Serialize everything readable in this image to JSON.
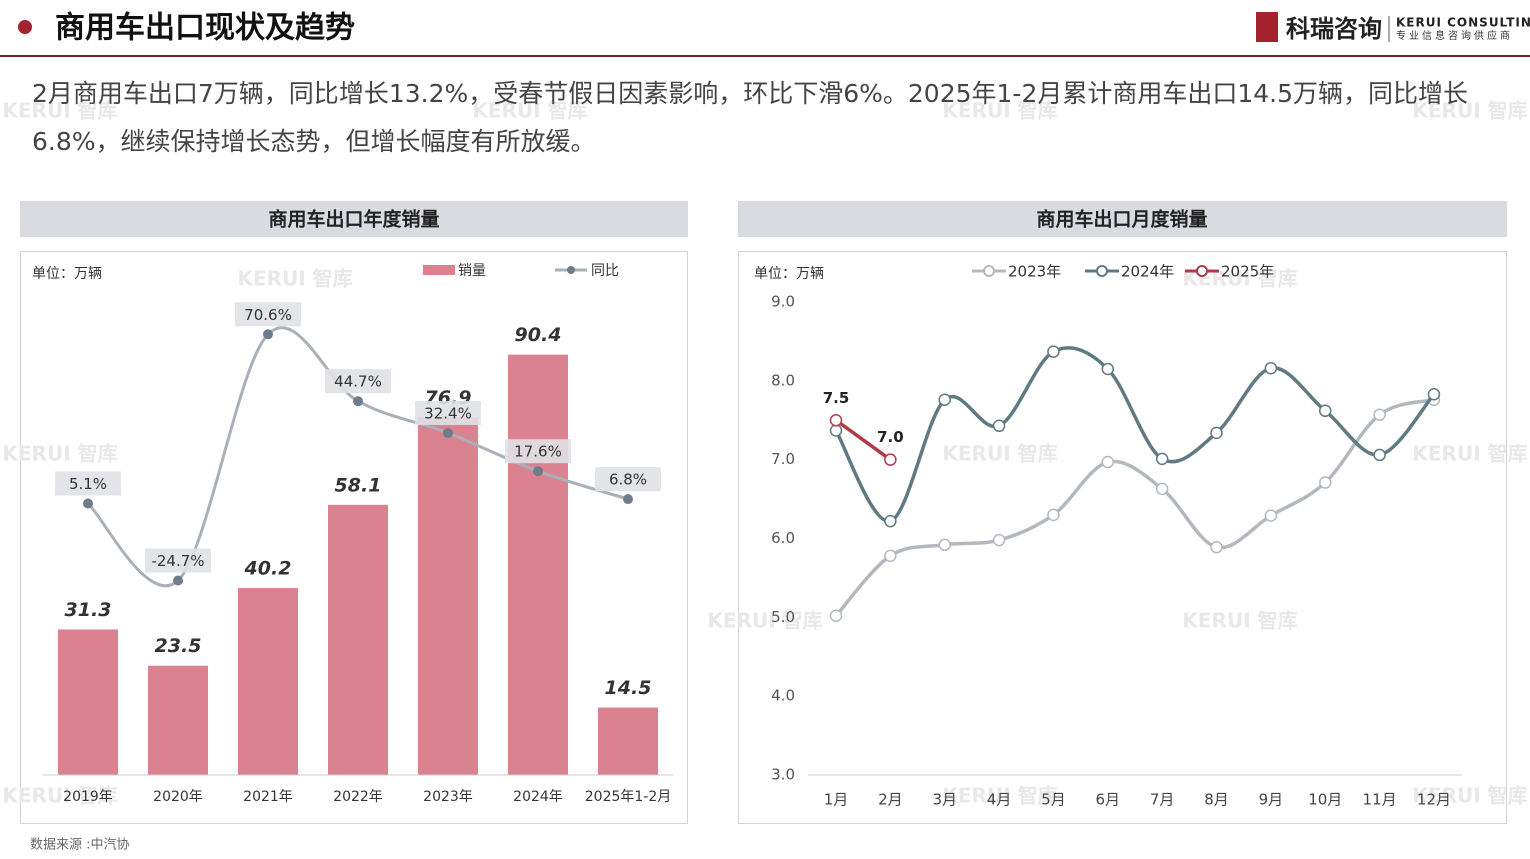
{
  "header": {
    "title": "商用车出口现状及趋势",
    "logo": "科瑞咨询",
    "logo_en": "KERUI CONSULTING",
    "logo_sub": "专业信息咨询供应商"
  },
  "summary": "2月商用车出口7万辆，同比增长13.2%，受春节假日因素影响，环比下滑6%。2025年1-2月累计商用车出口14.5万辆，同比增长6.8%，继续保持增长态势，但增长幅度有所放缓。",
  "source": "数据来源 :中汽协",
  "watermark": "KERUI 智库",
  "chart_data": [
    {
      "type": "bar",
      "title": "商用车出口年度销量",
      "unit": "单位：万辆",
      "categories": [
        "2019年",
        "2020年",
        "2021年",
        "2022年",
        "2023年",
        "2024年",
        "2025年1-2月"
      ],
      "ylim": [
        0,
        100
      ],
      "y2lim": [
        -100,
        80
      ],
      "series": [
        {
          "name": "销量",
          "type": "bar",
          "color": "#db8290",
          "values": [
            31.3,
            23.5,
            40.2,
            58.1,
            76.9,
            90.4,
            14.5
          ]
        },
        {
          "name": "同比",
          "type": "line",
          "axis": "y2",
          "color": "#a9b0b8",
          "marker_color": "#6e7c8b",
          "values": [
            5.1,
            -24.7,
            70.6,
            44.7,
            32.4,
            17.6,
            6.8
          ],
          "value_labels": [
            "5.1%",
            "-24.7%",
            "70.6%",
            "44.7%",
            "32.4%",
            "17.6%",
            "6.8%"
          ]
        }
      ]
    },
    {
      "type": "line",
      "title": "商用车出口月度销量",
      "unit": "单位：万辆",
      "categories": [
        "1月",
        "2月",
        "3月",
        "4月",
        "5月",
        "6月",
        "7月",
        "8月",
        "9月",
        "10月",
        "11月",
        "12月"
      ],
      "ylim": [
        3,
        9
      ],
      "yticks": [
        {
          "value": 3,
          "label": "3.0"
        },
        {
          "value": 4,
          "label": "4.0"
        },
        {
          "value": 5,
          "label": "5.0"
        },
        {
          "value": 6,
          "label": "6.0"
        },
        {
          "value": 7,
          "label": "7.0"
        },
        {
          "value": 8,
          "label": "8.0"
        },
        {
          "value": 9,
          "label": "9.0"
        }
      ],
      "series": [
        {
          "name": "2023年",
          "color": "#b3b8bf",
          "values": [
            5.02,
            5.78,
            5.92,
            5.98,
            6.3,
            6.97,
            6.63,
            5.89,
            6.29,
            6.71,
            7.57,
            7.76
          ]
        },
        {
          "name": "2024年",
          "color": "#5f7a82",
          "values": [
            7.37,
            6.22,
            7.76,
            7.43,
            8.37,
            8.15,
            7.01,
            7.34,
            8.16,
            7.62,
            7.06,
            7.83
          ]
        },
        {
          "name": "2025年",
          "color": "#b03a48",
          "values": [
            7.5,
            7.0,
            null,
            null,
            null,
            null,
            null,
            null,
            null,
            null,
            null,
            null
          ],
          "value_labels": [
            "7.5",
            "7.0",
            null,
            null,
            null,
            null,
            null,
            null,
            null,
            null,
            null,
            null
          ]
        }
      ]
    }
  ]
}
